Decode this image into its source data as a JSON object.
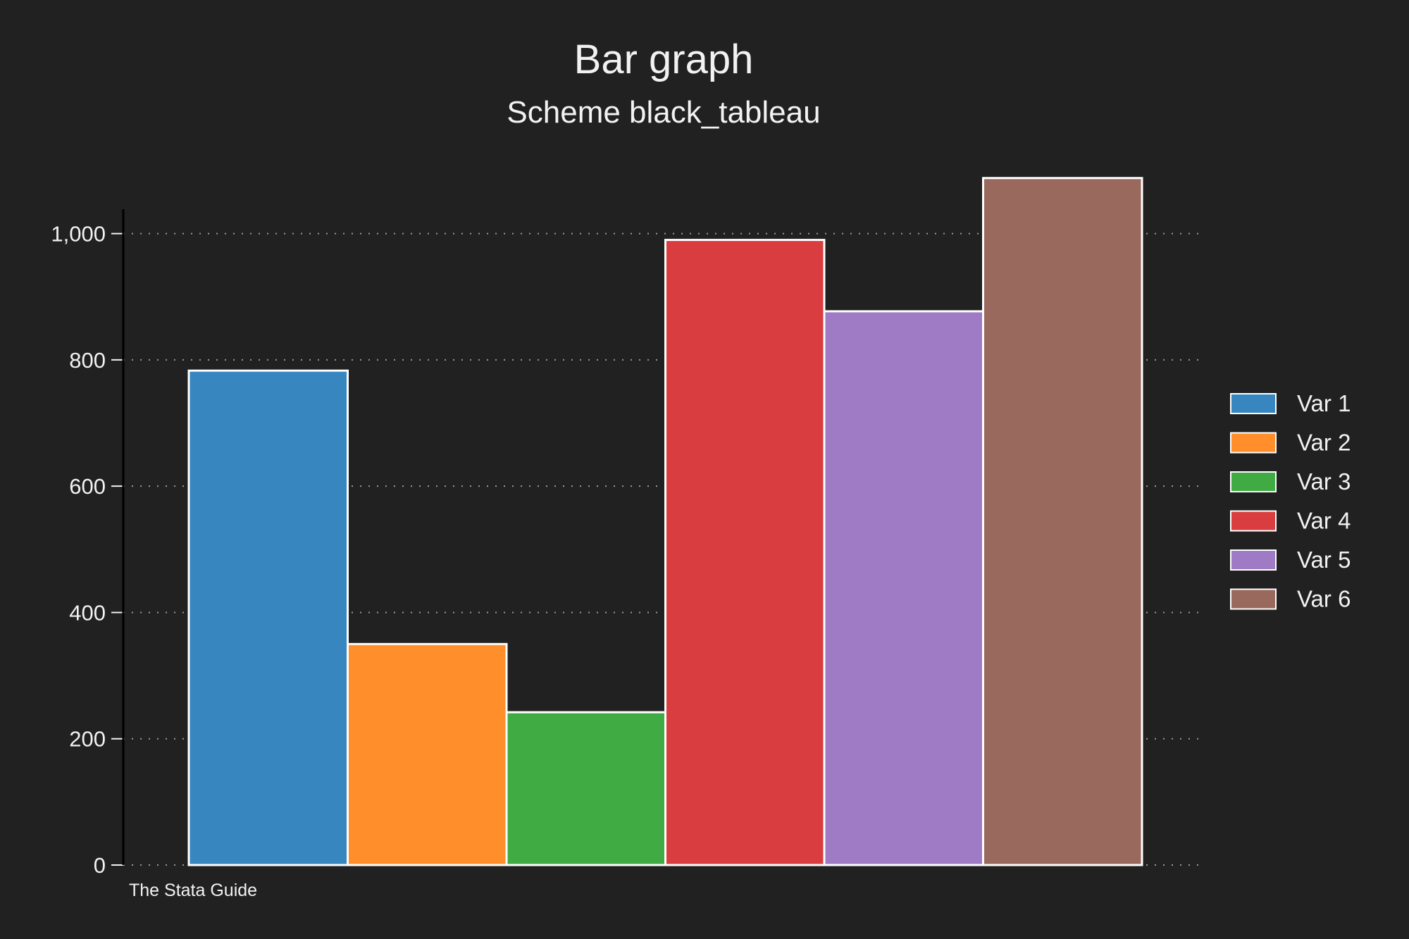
{
  "chart_data": {
    "type": "bar",
    "title": "Bar graph",
    "subtitle": "Scheme black_tableau",
    "xlabel": "",
    "ylabel": "",
    "ylim": [
      0,
      1100
    ],
    "yticks": [
      0,
      200,
      400,
      600,
      800,
      1000
    ],
    "ytick_labels": [
      "0",
      "200",
      "400",
      "600",
      "800",
      "1,000"
    ],
    "grid": true,
    "legend_position": "right",
    "series": [
      {
        "name": "Var 1",
        "value": 783,
        "color": "#3886bf"
      },
      {
        "name": "Var 2",
        "value": 350,
        "color": "#ff8e2b"
      },
      {
        "name": "Var 3",
        "value": 242,
        "color": "#41ab43"
      },
      {
        "name": "Var 4",
        "value": 990,
        "color": "#d93d3f"
      },
      {
        "name": "Var 5",
        "value": 877,
        "color": "#a07bc5"
      },
      {
        "name": "Var 6",
        "value": 1088,
        "color": "#9a695e"
      }
    ],
    "note": "The Stata Guide"
  },
  "colors": {
    "background": "#212121",
    "text": "#f2f2f2",
    "grid": "#9a9a9a",
    "bar_outline": "#ffffff",
    "axis": "#000000"
  }
}
